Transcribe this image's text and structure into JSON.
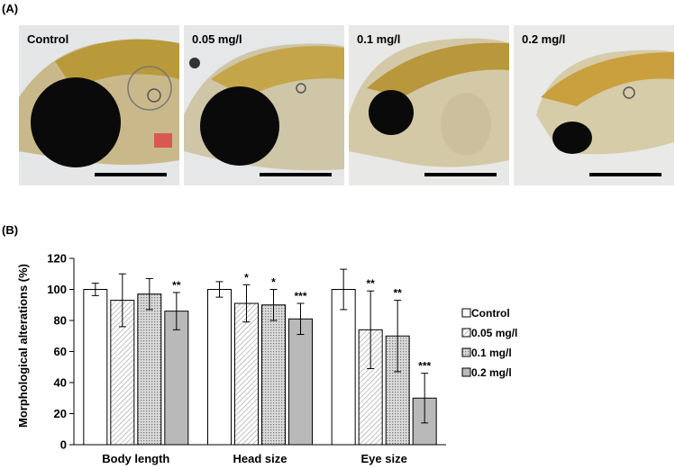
{
  "panel_a": {
    "label": "(A)",
    "photos": [
      {
        "label": "Control"
      },
      {
        "label": "0.05 mg/l"
      },
      {
        "label": "0.1 mg/l"
      },
      {
        "label": "0.2 mg/l"
      }
    ]
  },
  "panel_b": {
    "label": "(B)"
  },
  "chart_data": {
    "type": "bar",
    "title": "",
    "xlabel": "",
    "ylabel": "Morphological alterations (%)",
    "ylim": [
      0,
      120
    ],
    "yticks": [
      0,
      20,
      40,
      60,
      80,
      100,
      120
    ],
    "categories": [
      "Body length",
      "Head size",
      "Eye size"
    ],
    "legend_position": "right",
    "grid": false,
    "series": [
      {
        "name": "Control",
        "pattern": "solid-white",
        "values": [
          100,
          100,
          100
        ],
        "errors": [
          4,
          5,
          13
        ],
        "sig": [
          "",
          "",
          ""
        ]
      },
      {
        "name": "0.05 mg/l",
        "pattern": "diagonal",
        "values": [
          93,
          91,
          74
        ],
        "errors": [
          17,
          12,
          25
        ],
        "sig": [
          "",
          "*",
          "**"
        ]
      },
      {
        "name": "0.1 mg/l",
        "pattern": "dotted",
        "values": [
          97,
          90,
          70
        ],
        "errors": [
          10,
          10,
          23
        ],
        "sig": [
          "",
          "*",
          "**"
        ]
      },
      {
        "name": "0.2 mg/l",
        "pattern": "gray",
        "values": [
          86,
          81,
          30
        ],
        "errors": [
          12,
          10,
          16
        ],
        "sig": [
          "**",
          "***",
          "***"
        ]
      }
    ]
  }
}
